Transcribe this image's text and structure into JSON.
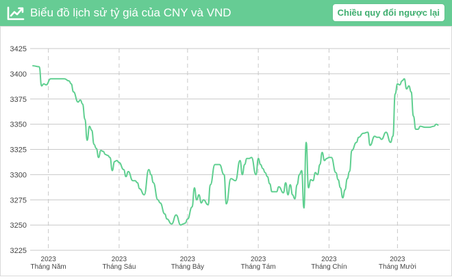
{
  "header": {
    "title": "Biểu đồ lịch sử tỷ giá của CNY và VND",
    "reverse_button": "Chiều quy đổi ngược lại",
    "icon": "chart-trend-up-icon"
  },
  "colors": {
    "header_bg": "#66cc94",
    "line": "#5fcf90",
    "grid": "#c8c8c8",
    "axis_text": "#444444"
  },
  "chart_data": {
    "type": "line",
    "title": "",
    "xlabel": "",
    "ylabel": "",
    "ylim": [
      3225,
      3425
    ],
    "yticks": [
      3225,
      3250,
      3275,
      3300,
      3325,
      3350,
      3375,
      3400,
      3425
    ],
    "grid": true,
    "xlim": [
      "2023-04-23",
      "2023-10-24"
    ],
    "x_ticks": [
      {
        "date": "2023-05-01",
        "year": "2023",
        "month": "Tháng Năm"
      },
      {
        "date": "2023-06-01",
        "year": "2023",
        "month": "Tháng Sáu"
      },
      {
        "date": "2023-07-01",
        "year": "2023",
        "month": "Tháng Bảy"
      },
      {
        "date": "2023-08-01",
        "year": "2023",
        "month": "Tháng Tám"
      },
      {
        "date": "2023-09-01",
        "year": "2023",
        "month": "Tháng Chín"
      },
      {
        "date": "2023-10-01",
        "year": "2023",
        "month": "Tháng Mười"
      }
    ],
    "series": [
      {
        "x": [
          "2023-04-24",
          "2023-04-27",
          "2023-04-28",
          "2023-04-29",
          "2023-04-30",
          "2023-05-02",
          "2023-05-05",
          "2023-05-08",
          "2023-05-10",
          "2023-05-11",
          "2023-05-12",
          "2023-05-14",
          "2023-05-15",
          "2023-05-16",
          "2023-05-17",
          "2023-05-18",
          "2023-05-19",
          "2023-05-20",
          "2023-05-21",
          "2023-05-22",
          "2023-05-23",
          "2023-05-24",
          "2023-05-25",
          "2023-05-26",
          "2023-05-27",
          "2023-05-28",
          "2023-05-29",
          "2023-05-30",
          "2023-05-31",
          "2023-06-01",
          "2023-06-03",
          "2023-06-04",
          "2023-06-05",
          "2023-06-07",
          "2023-06-08",
          "2023-06-09",
          "2023-06-10",
          "2023-06-12",
          "2023-06-14",
          "2023-06-15",
          "2023-06-16",
          "2023-06-18",
          "2023-06-19",
          "2023-06-21",
          "2023-06-22",
          "2023-06-24",
          "2023-06-26",
          "2023-06-28",
          "2023-06-29",
          "2023-06-30",
          "2023-07-01",
          "2023-07-03",
          "2023-07-04",
          "2023-07-05",
          "2023-07-06",
          "2023-07-07",
          "2023-07-08",
          "2023-07-10",
          "2023-07-11",
          "2023-07-13",
          "2023-07-15",
          "2023-07-17",
          "2023-07-18",
          "2023-07-20",
          "2023-07-22",
          "2023-07-24",
          "2023-07-25",
          "2023-07-26",
          "2023-07-27",
          "2023-07-28",
          "2023-07-29",
          "2023-07-31",
          "2023-08-01",
          "2023-08-02",
          "2023-08-03",
          "2023-08-04",
          "2023-08-05",
          "2023-08-06",
          "2023-08-07",
          "2023-08-09",
          "2023-08-10",
          "2023-08-12",
          "2023-08-13",
          "2023-08-14",
          "2023-08-15",
          "2023-08-16",
          "2023-08-17",
          "2023-08-18",
          "2023-08-19",
          "2023-08-20",
          "2023-08-21",
          "2023-08-22",
          "2023-08-23",
          "2023-08-24",
          "2023-08-25",
          "2023-08-26",
          "2023-08-27",
          "2023-08-28",
          "2023-08-29",
          "2023-08-30",
          "2023-08-31",
          "2023-09-01",
          "2023-09-02",
          "2023-09-04",
          "2023-09-05",
          "2023-09-06",
          "2023-09-07",
          "2023-09-08",
          "2023-09-09",
          "2023-09-10",
          "2023-09-11",
          "2023-09-13",
          "2023-09-14",
          "2023-09-16",
          "2023-09-18",
          "2023-09-19",
          "2023-09-21",
          "2023-09-22",
          "2023-09-23",
          "2023-09-24",
          "2023-09-26",
          "2023-09-28",
          "2023-09-29",
          "2023-09-30",
          "2023-10-01",
          "2023-10-02",
          "2023-10-03",
          "2023-10-04",
          "2023-10-05",
          "2023-10-06",
          "2023-10-07",
          "2023-10-08",
          "2023-10-09",
          "2023-10-10",
          "2023-10-11",
          "2023-10-13",
          "2023-10-15",
          "2023-10-17",
          "2023-10-18",
          "2023-10-19"
        ],
        "y": [
          3408,
          3407,
          3388,
          3390,
          3389,
          3395,
          3395,
          3395,
          3393,
          3390,
          3382,
          3372,
          3374,
          3370,
          3355,
          3334,
          3348,
          3344,
          3330,
          3326,
          3317,
          3324,
          3323,
          3320,
          3319,
          3317,
          3304,
          3313,
          3314,
          3312,
          3305,
          3298,
          3303,
          3294,
          3294,
          3292,
          3286,
          3280,
          3305,
          3300,
          3292,
          3275,
          3272,
          3261,
          3256,
          3251,
          3260,
          3250,
          3251,
          3252,
          3256,
          3268,
          3287,
          3275,
          3280,
          3272,
          3275,
          3270,
          3290,
          3310,
          3310,
          3300,
          3271,
          3296,
          3294,
          3314,
          3300,
          3310,
          3316,
          3316,
          3317,
          3300,
          3316,
          3310,
          3306,
          3302,
          3298,
          3291,
          3283,
          3283,
          3288,
          3282,
          3292,
          3280,
          3290,
          3280,
          3276,
          3290,
          3300,
          3304,
          3267,
          3332,
          3287,
          3295,
          3294,
          3302,
          3300,
          3310,
          3322,
          3314,
          3316,
          3317,
          3317,
          3302,
          3295,
          3287,
          3277,
          3285,
          3296,
          3303,
          3324,
          3332,
          3337,
          3341,
          3342,
          3329,
          3338,
          3337,
          3337,
          3335,
          3342,
          3332,
          3338,
          3380,
          3390,
          3389,
          3393,
          3395,
          3385,
          3388,
          3382,
          3358,
          3345,
          3345,
          3348,
          3347,
          3347,
          3348,
          3350,
          3349
        ]
      }
    ]
  }
}
